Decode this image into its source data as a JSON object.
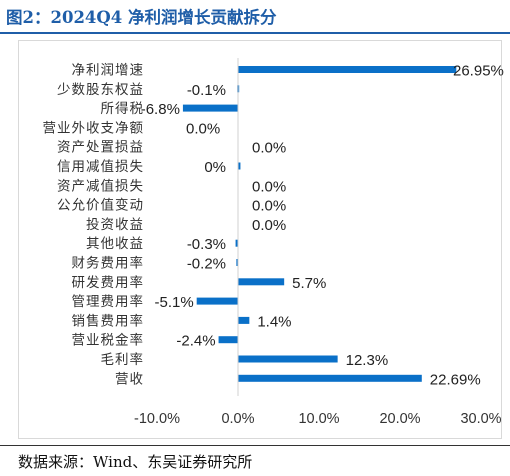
{
  "header": {
    "title": "图2：2024Q4 净利润增长贡献拆分"
  },
  "footer": {
    "source": "数据来源：Wind、东吴证券研究所"
  },
  "colors": {
    "bar": "#0a70c8",
    "title": "#1f5ea8"
  },
  "chart_data": {
    "type": "bar",
    "orientation": "horizontal",
    "title": "",
    "xlabel": "",
    "ylabel": "",
    "xlim": [
      -10,
      30
    ],
    "xticks": [
      -10,
      0,
      10,
      20,
      30
    ],
    "xtick_labels": [
      "-10.0%",
      "0.0%",
      "10.0%",
      "20.0%",
      "30.0%"
    ],
    "grid": false,
    "legend": "none",
    "categories": [
      "净利润增速",
      "少数股东权益",
      "所得税",
      "营业外收支净额",
      "资产处置损益",
      "信用减值损失",
      "资产减值损失",
      "公允价值变动",
      "投资收益",
      "其他收益",
      "财务费用率",
      "研发费用率",
      "管理费用率",
      "销售费用率",
      "营业税金率",
      "毛利率",
      "营收"
    ],
    "values": [
      26.95,
      -0.1,
      -6.8,
      0.0,
      0.0,
      0.3,
      0.0,
      0.0,
      0.0,
      -0.3,
      -0.2,
      5.7,
      -5.1,
      1.4,
      -2.4,
      12.3,
      22.69
    ],
    "data_labels": [
      "26.95%",
      "-0.1%",
      "-6.8%",
      "0.0%",
      "0.0%",
      "0%",
      "0.0%",
      "0.0%",
      "0.0%",
      "-0.3%",
      "-0.2%",
      "5.7%",
      "-5.1%",
      "1.4%",
      "-2.4%",
      "12.3%",
      "22.69%"
    ]
  }
}
